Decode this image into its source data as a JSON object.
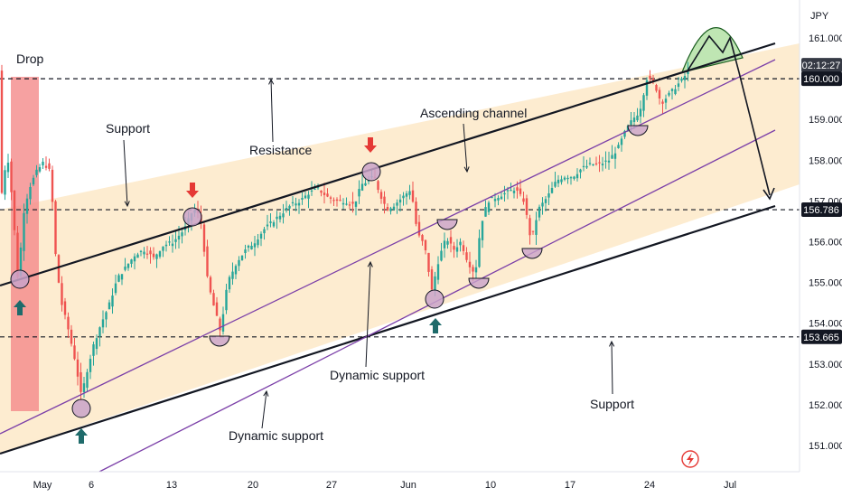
{
  "chart_data": {
    "type": "candlestick",
    "currency": "JPY",
    "y_ticks": [
      "151.000",
      "152.000",
      "153.000",
      "154.000",
      "155.000",
      "156.000",
      "157.000",
      "158.000",
      "159.000",
      "160.000",
      "161.000"
    ],
    "x_ticks": [
      "May",
      "6",
      "13",
      "20",
      "27",
      "Jun",
      "10",
      "17",
      "24",
      "Jul"
    ],
    "ylim": [
      150.6,
      161.4
    ],
    "price_tags": [
      {
        "label": "02:12:27",
        "kind": "timer"
      },
      {
        "label": "160.000",
        "value": 160.0
      },
      {
        "label": "156.786",
        "value": 156.786
      },
      {
        "label": "153.665",
        "value": 153.665
      }
    ],
    "horizontal_levels": [
      160.0,
      156.786,
      153.665
    ],
    "annotations": [
      "Drop",
      "Support",
      "Resistance",
      "Ascending channel",
      "Dynamic support",
      "Dynamic support",
      "Support"
    ],
    "colors": {
      "up": "#26a69a",
      "down": "#ef5350",
      "channel_fill": "#fde9c8",
      "drop_zone": "#f48a8a",
      "dynamic_line": "#7b3fa8",
      "marker_circle": "#c9a3c9",
      "arrow_up": "#1f6b6b",
      "arrow_down": "#e53935",
      "projection_fill": "#bfe6b3",
      "tag_bg": "#131722"
    }
  }
}
